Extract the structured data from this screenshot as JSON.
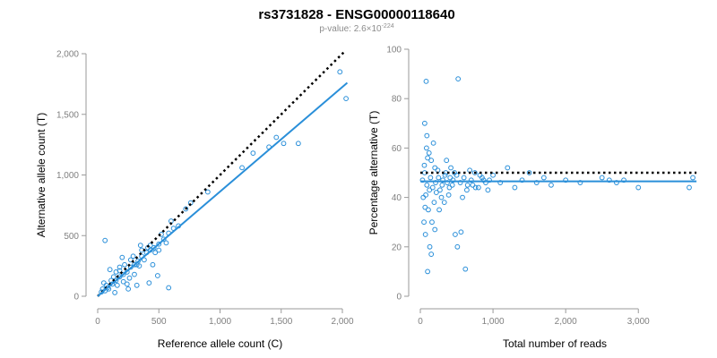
{
  "figure": {
    "title": "rs3731828 - ENSG00000118640",
    "pvalue_prefix": "p-value: 2.6×10",
    "pvalue_exponent": "-224"
  },
  "colors": {
    "points": "#2a8fd9",
    "fit_line": "#2a8fd9",
    "reference_line": "#000000",
    "axis": "#9a9a9a",
    "tick_text": "#7f7f7f"
  },
  "chart_data": [
    {
      "type": "scatter",
      "xlabel": "Reference allele count (C)",
      "ylabel": "Alternative allele count (T)",
      "xlim": [
        0,
        2000
      ],
      "ylim": [
        0,
        2000
      ],
      "x_ticks": [
        0,
        500,
        1000,
        1500,
        2000
      ],
      "x_tick_labels": [
        "0",
        "500",
        "1,000",
        "1,500",
        "2,000"
      ],
      "y_ticks": [
        0,
        500,
        1000,
        1500,
        2000
      ],
      "y_tick_labels": [
        "0",
        "500",
        "1,000",
        "1,500",
        "2,000"
      ],
      "reference_line": {
        "style": "dotted",
        "x": [
          0,
          2020
        ],
        "y": [
          0,
          2020
        ]
      },
      "fit_line": {
        "style": "solid",
        "x": [
          0,
          2040
        ],
        "y": [
          0,
          1760
        ]
      },
      "points": [
        [
          30,
          35
        ],
        [
          60,
          45
        ],
        [
          80,
          70
        ],
        [
          120,
          100
        ],
        [
          150,
          130
        ],
        [
          180,
          160
        ],
        [
          210,
          180
        ],
        [
          240,
          200
        ],
        [
          270,
          240
        ],
        [
          300,
          260
        ],
        [
          330,
          290
        ],
        [
          360,
          330
        ],
        [
          400,
          360
        ],
        [
          430,
          380
        ],
        [
          460,
          400
        ],
        [
          500,
          430
        ],
        [
          540,
          470
        ],
        [
          580,
          520
        ],
        [
          620,
          560
        ],
        [
          660,
          580
        ],
        [
          720,
          720
        ],
        [
          900,
          860
        ],
        [
          760,
          770
        ],
        [
          1180,
          1060
        ],
        [
          1270,
          1180
        ],
        [
          1400,
          1230
        ],
        [
          1460,
          1310
        ],
        [
          1520,
          1260
        ],
        [
          1640,
          1260
        ],
        [
          1980,
          1850
        ],
        [
          2030,
          1630
        ],
        [
          60,
          460
        ],
        [
          580,
          70
        ],
        [
          490,
          170
        ],
        [
          420,
          110
        ],
        [
          250,
          60
        ],
        [
          200,
          320
        ],
        [
          320,
          90
        ],
        [
          100,
          220
        ],
        [
          140,
          30
        ],
        [
          50,
          110
        ],
        [
          90,
          60
        ],
        [
          180,
          210
        ],
        [
          260,
          150
        ],
        [
          350,
          420
        ],
        [
          450,
          260
        ],
        [
          520,
          510
        ],
        [
          600,
          620
        ],
        [
          380,
          300
        ],
        [
          160,
          90
        ],
        [
          110,
          130
        ],
        [
          70,
          90
        ],
        [
          210,
          120
        ],
        [
          290,
          330
        ],
        [
          340,
          250
        ],
        [
          410,
          400
        ],
        [
          470,
          360
        ],
        [
          220,
          260
        ],
        [
          130,
          160
        ],
        [
          40,
          60
        ],
        [
          500,
          380
        ],
        [
          560,
          440
        ],
        [
          300,
          180
        ],
        [
          240,
          100
        ],
        [
          180,
          240
        ],
        [
          360,
          380
        ],
        [
          430,
          420
        ],
        [
          270,
          300
        ],
        [
          320,
          260
        ],
        [
          150,
          200
        ]
      ]
    },
    {
      "type": "scatter",
      "xlabel": "Total number of reads",
      "ylabel": "Percentage alternative (T)",
      "xlim": [
        0,
        3700
      ],
      "ylim": [
        0,
        100
      ],
      "x_ticks": [
        0,
        1000,
        2000,
        3000
      ],
      "x_tick_labels": [
        "0",
        "1,000",
        "2,000",
        "3,000"
      ],
      "y_ticks": [
        0,
        20,
        40,
        60,
        80,
        100
      ],
      "y_tick_labels": [
        "0",
        "20",
        "40",
        "60",
        "80",
        "100"
      ],
      "reference_line": {
        "style": "dotted",
        "x": [
          0,
          3800
        ],
        "y": [
          50,
          50
        ]
      },
      "fit_line": {
        "style": "solid",
        "x": [
          0,
          3800
        ],
        "y": [
          46.5,
          46.5
        ]
      },
      "points": [
        [
          80,
          87
        ],
        [
          520,
          88
        ],
        [
          620,
          11
        ],
        [
          100,
          10
        ],
        [
          150,
          55
        ],
        [
          180,
          62
        ],
        [
          60,
          70
        ],
        [
          90,
          65
        ],
        [
          120,
          58
        ],
        [
          200,
          52
        ],
        [
          250,
          48
        ],
        [
          300,
          45
        ],
        [
          350,
          50
        ],
        [
          400,
          44
        ],
        [
          450,
          47
        ],
        [
          500,
          49
        ],
        [
          550,
          46
        ],
        [
          600,
          48
        ],
        [
          650,
          45
        ],
        [
          700,
          47
        ],
        [
          750,
          50
        ],
        [
          800,
          44
        ],
        [
          850,
          48
        ],
        [
          900,
          46
        ],
        [
          950,
          47
        ],
        [
          1000,
          49
        ],
        [
          1100,
          46
        ],
        [
          1200,
          52
        ],
        [
          1300,
          44
        ],
        [
          1400,
          47
        ],
        [
          1500,
          50
        ],
        [
          1600,
          46
        ],
        [
          1700,
          48
        ],
        [
          1800,
          45
        ],
        [
          2000,
          47
        ],
        [
          2200,
          46
        ],
        [
          2500,
          48
        ],
        [
          2600,
          47
        ],
        [
          2700,
          46
        ],
        [
          2800,
          47
        ],
        [
          3000,
          44
        ],
        [
          3700,
          44
        ],
        [
          3750,
          48
        ],
        [
          40,
          40
        ],
        [
          50,
          30
        ],
        [
          70,
          25
        ],
        [
          110,
          35
        ],
        [
          130,
          20
        ],
        [
          160,
          30
        ],
        [
          190,
          38
        ],
        [
          220,
          42
        ],
        [
          260,
          35
        ],
        [
          290,
          40
        ],
        [
          330,
          38
        ],
        [
          360,
          55
        ],
        [
          390,
          41
        ],
        [
          420,
          52
        ],
        [
          480,
          25
        ],
        [
          510,
          20
        ],
        [
          560,
          26
        ],
        [
          580,
          40
        ],
        [
          640,
          43
        ],
        [
          680,
          51
        ],
        [
          720,
          45
        ],
        [
          760,
          44
        ],
        [
          820,
          49
        ],
        [
          870,
          47
        ],
        [
          930,
          43
        ],
        [
          60,
          50
        ],
        [
          90,
          45
        ],
        [
          140,
          48
        ],
        [
          170,
          44
        ],
        [
          210,
          46
        ],
        [
          240,
          51
        ],
        [
          270,
          43
        ],
        [
          310,
          47
        ],
        [
          340,
          49
        ],
        [
          370,
          46
        ],
        [
          410,
          48
        ],
        [
          440,
          45
        ],
        [
          470,
          50
        ],
        [
          30,
          47
        ],
        [
          55,
          53
        ],
        [
          75,
          41
        ],
        [
          100,
          56
        ],
        [
          125,
          43
        ],
        [
          85,
          60
        ],
        [
          65,
          36
        ],
        [
          150,
          17
        ],
        [
          200,
          27
        ]
      ]
    }
  ]
}
